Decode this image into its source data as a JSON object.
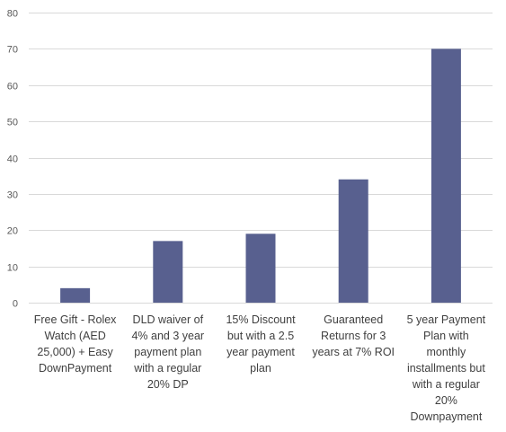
{
  "chart_data": {
    "type": "bar",
    "categories": [
      "Free Gift - Rolex Watch (AED 25,000) + Easy DownPayment",
      "DLD waiver of 4% and 3 year payment plan with a regular 20% DP",
      "15% Discount but with a 2.5 year payment plan",
      "Guaranteed Returns for 3 years at 7% ROI",
      "5 year Payment Plan with monthly installments but with a regular 20% Downpayment"
    ],
    "category_lines": [
      [
        "Free Gift - Rolex",
        "Watch (AED",
        "25,000) + Easy",
        "DownPayment"
      ],
      [
        "DLD waiver of",
        "4% and 3 year",
        "payment plan",
        "with a regular",
        "20% DP"
      ],
      [
        "15% Discount",
        "but with a 2.5",
        "year payment",
        "plan"
      ],
      [
        "Guaranteed",
        "Returns for 3",
        "years at 7% ROI"
      ],
      [
        "5 year Payment",
        "Plan with",
        "monthly",
        "installments but",
        "with a regular",
        "20%",
        "Downpayment"
      ]
    ],
    "values": [
      4,
      17,
      19,
      34,
      70
    ],
    "ylim": [
      0,
      80
    ],
    "yticks": [
      0,
      10,
      20,
      30,
      40,
      50,
      60,
      70,
      80
    ],
    "title": "",
    "xlabel": "",
    "ylabel": "",
    "grid": true,
    "bar_color": "#58608f",
    "grid_color": "#d9d9d9",
    "text_color": "#595959"
  }
}
